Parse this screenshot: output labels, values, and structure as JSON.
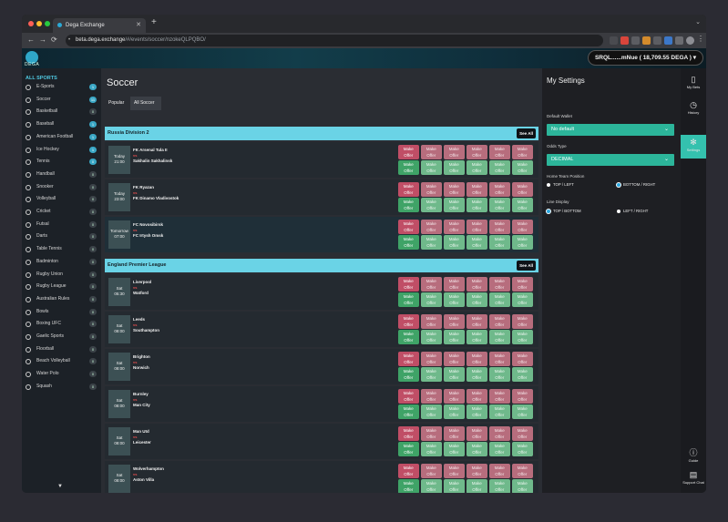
{
  "browser": {
    "tab_title": "Dega Exchange",
    "new_tab": "+",
    "close_tab": "✕",
    "tab_menu": "⌄",
    "url_host": "beta.dega.exchange",
    "url_path": "/#/events/soccer/nzokeQLPQBO/",
    "nav_back": "←",
    "nav_forward": "→",
    "nav_reload": "⟳",
    "lock_icon": "🔒"
  },
  "app": {
    "logo_text": "DEGA",
    "wallet_label": "SRQL......mNue ( 18,709.55 DEGA ) ▾"
  },
  "sidebar": {
    "title": "ALL SPORTS",
    "items": [
      {
        "label": "E-Sports",
        "count": "1",
        "live": true
      },
      {
        "label": "Soccer",
        "count": "11",
        "live": true
      },
      {
        "label": "Basketball",
        "count": "0",
        "live": false
      },
      {
        "label": "Baseball",
        "count": "1",
        "live": true
      },
      {
        "label": "American Football",
        "count": "1",
        "live": true
      },
      {
        "label": "Ice Hockey",
        "count": "1",
        "live": true
      },
      {
        "label": "Tennis",
        "count": "0",
        "live": true
      },
      {
        "label": "Handball",
        "count": "0",
        "live": false
      },
      {
        "label": "Snooker",
        "count": "0",
        "live": false
      },
      {
        "label": "Volleyball",
        "count": "0",
        "live": false
      },
      {
        "label": "Cricket",
        "count": "0",
        "live": false
      },
      {
        "label": "Futsal",
        "count": "0",
        "live": false
      },
      {
        "label": "Darts",
        "count": "0",
        "live": false
      },
      {
        "label": "Table Tennis",
        "count": "0",
        "live": false
      },
      {
        "label": "Badminton",
        "count": "0",
        "live": false
      },
      {
        "label": "Rugby Union",
        "count": "0",
        "live": false
      },
      {
        "label": "Rugby League",
        "count": "0",
        "live": false
      },
      {
        "label": "Australian Rules",
        "count": "0",
        "live": false
      },
      {
        "label": "Bowls",
        "count": "0",
        "live": false
      },
      {
        "label": "Boxing UFC",
        "count": "0",
        "live": false
      },
      {
        "label": "Gaelic Sports",
        "count": "0",
        "live": false
      },
      {
        "label": "Floorball",
        "count": "0",
        "live": false
      },
      {
        "label": "Beach Volleyball",
        "count": "0",
        "live": false
      },
      {
        "label": "Water Polo",
        "count": "0",
        "live": false
      },
      {
        "label": "Squash",
        "count": "0",
        "live": false
      }
    ],
    "chevron": "▼"
  },
  "main": {
    "title": "Soccer",
    "tabs": [
      "Popular",
      "All Soccer"
    ],
    "offer_line1": "Make",
    "offer_line2": "Offer",
    "vs": "vs",
    "leagues": [
      {
        "name": "Russia Division 2",
        "see_all": "See All",
        "events": [
          {
            "day": "Today",
            "time": "21:00",
            "home": "FK Arsenal Tula II",
            "away": "Sakhalin Sakhalinsk"
          },
          {
            "day": "Today",
            "time": "23:00",
            "home": "FK Ryazan",
            "away": "FK Dinamo Vladivostok"
          },
          {
            "day": "Tomorrow",
            "time": "07:00",
            "home": "FC Novosibirsk",
            "away": "FC Irtysh Omsk"
          }
        ]
      },
      {
        "name": "England Premier League",
        "see_all": "See All",
        "events": [
          {
            "day": "Sat",
            "time": "05:30",
            "home": "Liverpool",
            "away": "Watford"
          },
          {
            "day": "Sat",
            "time": "08:00",
            "home": "Leeds",
            "away": "Southampton"
          },
          {
            "day": "Sat",
            "time": "08:00",
            "home": "Brighton",
            "away": "Norwich"
          },
          {
            "day": "Sat",
            "time": "08:00",
            "home": "Burnley",
            "away": "Man City"
          },
          {
            "day": "Sat",
            "time": "08:00",
            "home": "Man Utd",
            "away": "Leicester"
          },
          {
            "day": "Sat",
            "time": "08:00",
            "home": "Wolverhampton",
            "away": "Aston Villa"
          }
        ]
      }
    ]
  },
  "settings": {
    "title": "My Settings",
    "default_wallet_label": "Default Wallet",
    "default_wallet_value": "No default",
    "odds_type_label": "Odds Type",
    "odds_type_value": "DECIMAL",
    "home_team_label": "Home Team Position",
    "home_opt1": "TOP / LEFT",
    "home_opt2": "BOTTOM / RIGHT",
    "line_display_label": "Line Display",
    "line_opt1": "TOP / BOTTOM",
    "line_opt2": "LEFT / RIGHT",
    "chevron": "⌄"
  },
  "rail": {
    "my_bets": "My Bets",
    "history": "History",
    "settings": "Settings",
    "guide": "Guide",
    "support": "Support Chat"
  },
  "colors": {
    "accent": "#6ad3e6",
    "back": "#b76d7d",
    "lay": "#6fb98b",
    "settings_select": "#2cb59a"
  }
}
